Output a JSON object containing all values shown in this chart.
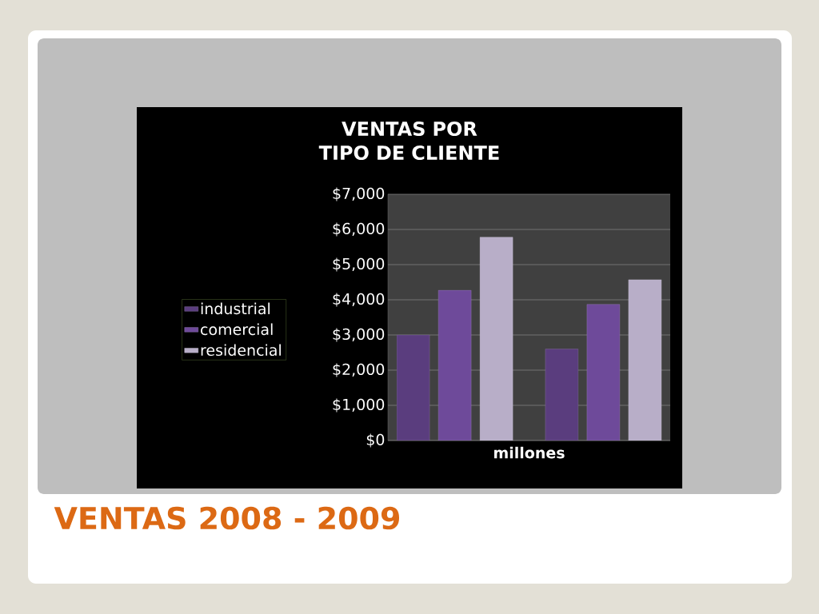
{
  "chart_data": {
    "type": "bar",
    "title": "VENTAS POR  TIPO DE CLIENTE",
    "xlabel": "millones",
    "categories": [
      null,
      null
    ],
    "series": [
      {
        "name": "industrial",
        "color": "#5a3d7e",
        "values": [
          3000,
          2600
        ]
      },
      {
        "name": "comercial",
        "color": "#6e4a9a",
        "values": [
          4270,
          3870
        ]
      },
      {
        "name": "residencial",
        "color": "#b8aec8",
        "values": [
          5780,
          4570
        ]
      }
    ],
    "ylim": [
      0,
      7000
    ],
    "yticks": [
      {
        "value": 0,
        "label": "$0"
      },
      {
        "value": 1000,
        "label": "$1,000"
      },
      {
        "value": 2000,
        "label": "$2,000"
      },
      {
        "value": 3000,
        "label": "$3,000"
      },
      {
        "value": 4000,
        "label": "$4,000"
      },
      {
        "value": 5000,
        "label": "$5,000"
      },
      {
        "value": 6000,
        "label": "$6,000"
      },
      {
        "value": 7000,
        "label": "$7,000"
      }
    ],
    "grid": "y",
    "legend": "left",
    "annotations": [
      "VENTAS  2008 - 2009"
    ]
  }
}
